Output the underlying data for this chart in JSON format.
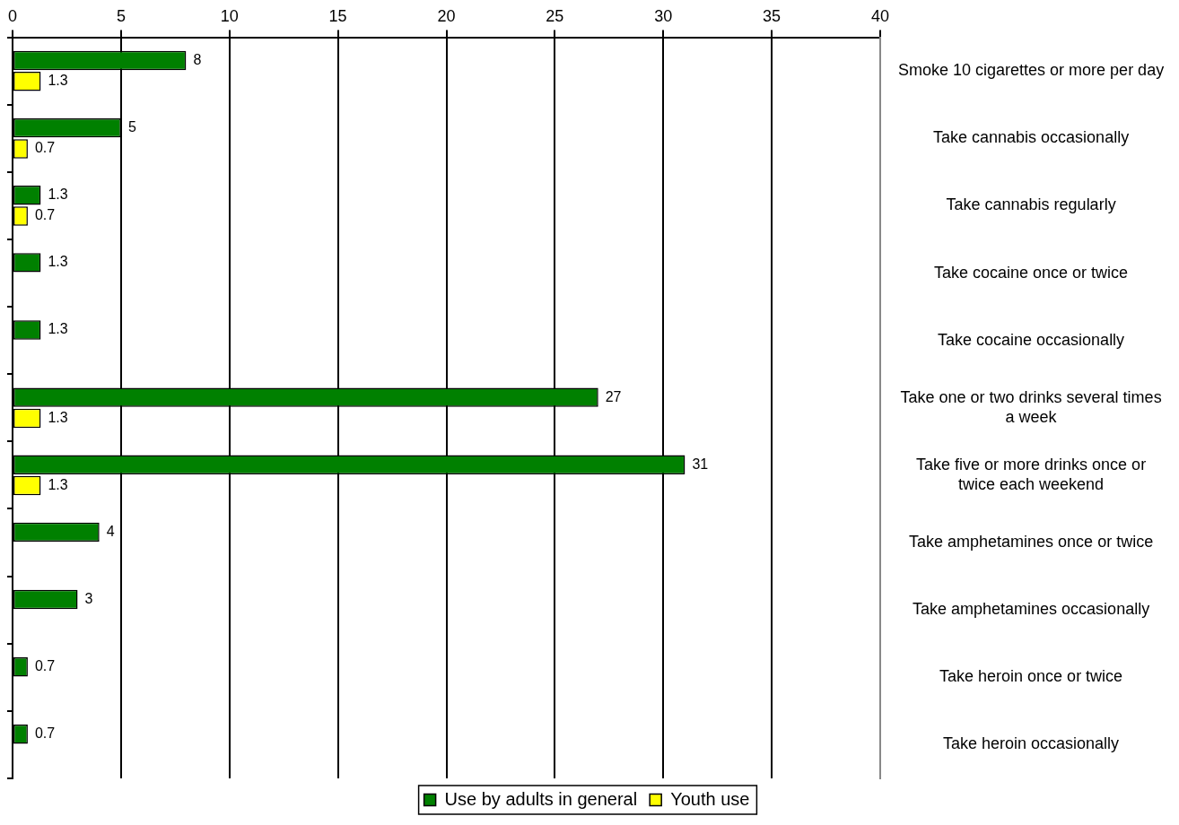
{
  "chart_data": {
    "type": "bar",
    "orientation": "horizontal",
    "categories": [
      "Smoke 10 cigarettes or more per day",
      "Take cannabis occasionally",
      "Take cannabis regularly",
      "Take cocaine once or twice",
      "Take cocaine occasionally",
      "Take one or two drinks several times a week",
      "Take five or more drinks once or twice each weekend",
      "Take amphetamines once or twice",
      "Take amphetamines occasionally",
      "Take heroin once or twice",
      "Take heroin occasionally"
    ],
    "series": [
      {
        "name": "Use by adults in general",
        "color": "#008000",
        "values": [
          8,
          5,
          1.3,
          1.3,
          1.3,
          27,
          31,
          4,
          3,
          0.7,
          0.7
        ]
      },
      {
        "name": "Youth use",
        "color": "#ffff00",
        "values": [
          1.3,
          0.7,
          0.7,
          null,
          null,
          1.3,
          1.3,
          null,
          null,
          null,
          null
        ]
      }
    ],
    "xlim": [
      0,
      40
    ],
    "xticks": [
      0,
      5,
      10,
      15,
      20,
      25,
      30,
      35,
      40
    ],
    "grid": "x",
    "legend": "bottom",
    "data_labels": true
  }
}
